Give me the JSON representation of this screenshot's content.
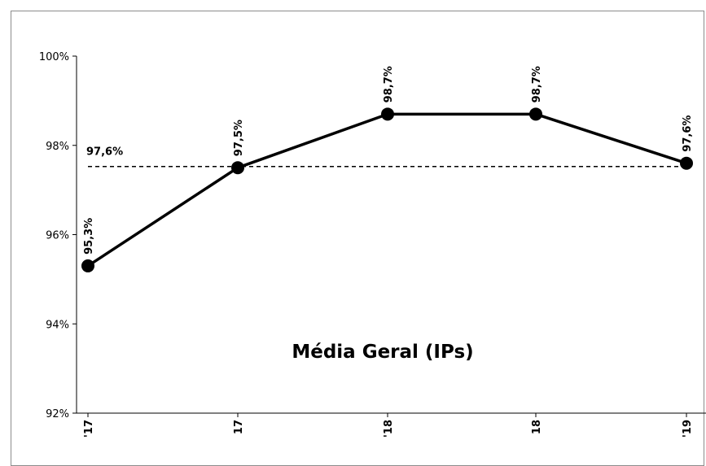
{
  "chart_data": {
    "type": "line",
    "title": "Média Geral (IPs)",
    "x": [
      "'17",
      "17",
      "'18",
      "18",
      "'19"
    ],
    "y_ticks": [
      "92%",
      "94%",
      "96%",
      "98%",
      "100%"
    ],
    "ylim": [
      92,
      100
    ],
    "grid": false,
    "series": [
      {
        "values": [
          95.3,
          97.5,
          98.7,
          98.7,
          97.6
        ],
        "labels": [
          "95,3%",
          "97,5%",
          "98,7%",
          "98,7%",
          "97,6%"
        ],
        "color": "#000000"
      }
    ],
    "average_line": {
      "value": 97.6,
      "label": "97,6%",
      "style": "dashed",
      "color": "#000000"
    }
  }
}
